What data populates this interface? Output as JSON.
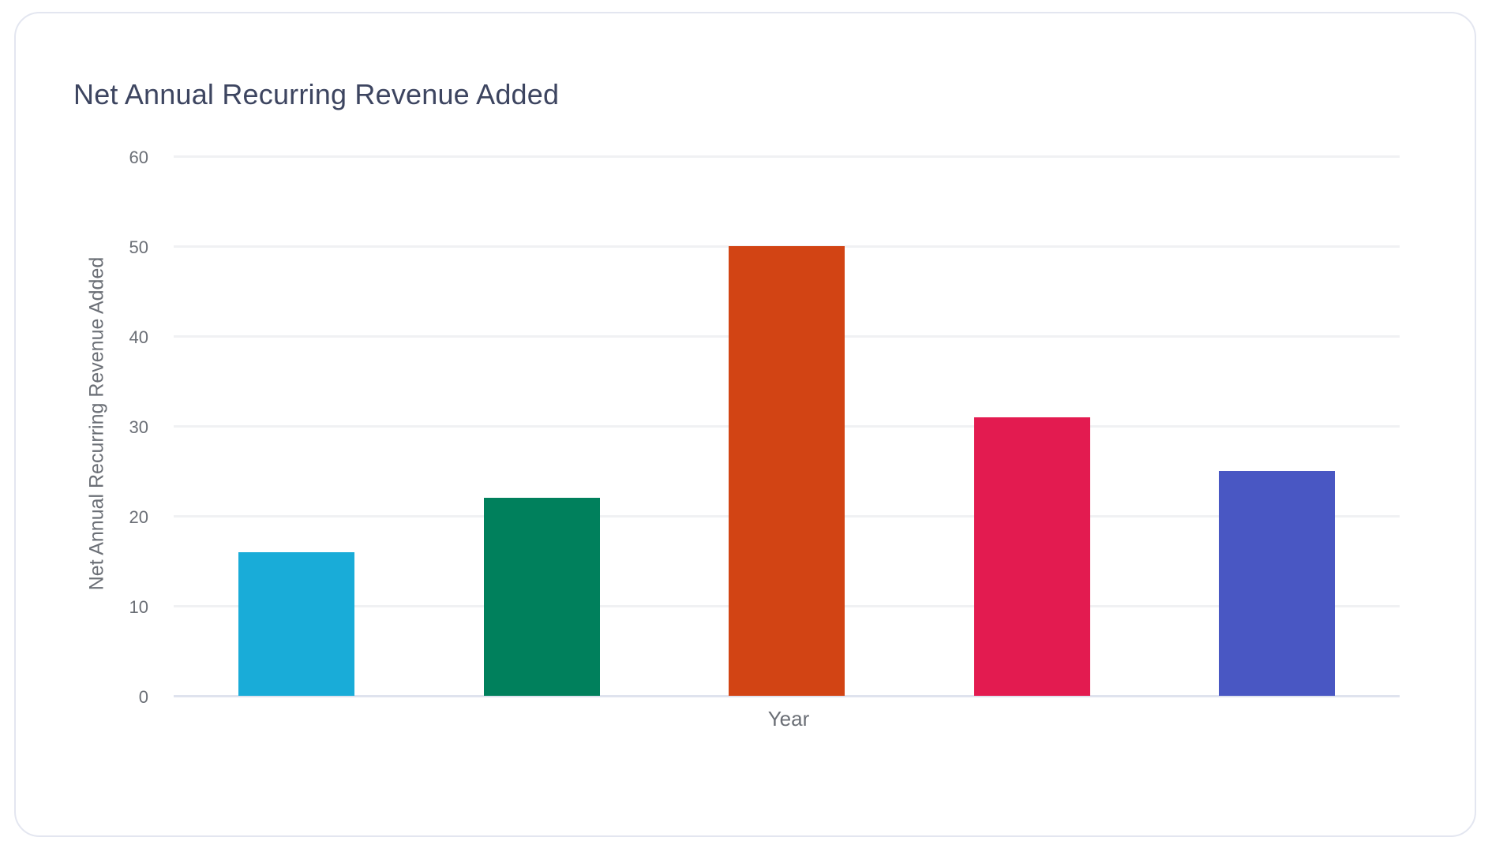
{
  "card": {
    "title": "Net Annual Recurring Revenue Added"
  },
  "chart_data": {
    "type": "bar",
    "title": "Net Annual Recurring Revenue Added",
    "xlabel": "Year",
    "ylabel": "Net Annual Recurring Revenue Added",
    "categories": [
      "",
      "",
      "",
      "",
      ""
    ],
    "values": [
      16,
      22,
      50,
      31,
      25
    ],
    "colors": [
      "#19acd8",
      "#00805c",
      "#d24414",
      "#e31b50",
      "#4957c3"
    ],
    "ylim": [
      0,
      60
    ],
    "yticks": [
      "0",
      "10",
      "20",
      "30",
      "40",
      "50",
      "60"
    ],
    "grid": true,
    "legend": "none"
  }
}
